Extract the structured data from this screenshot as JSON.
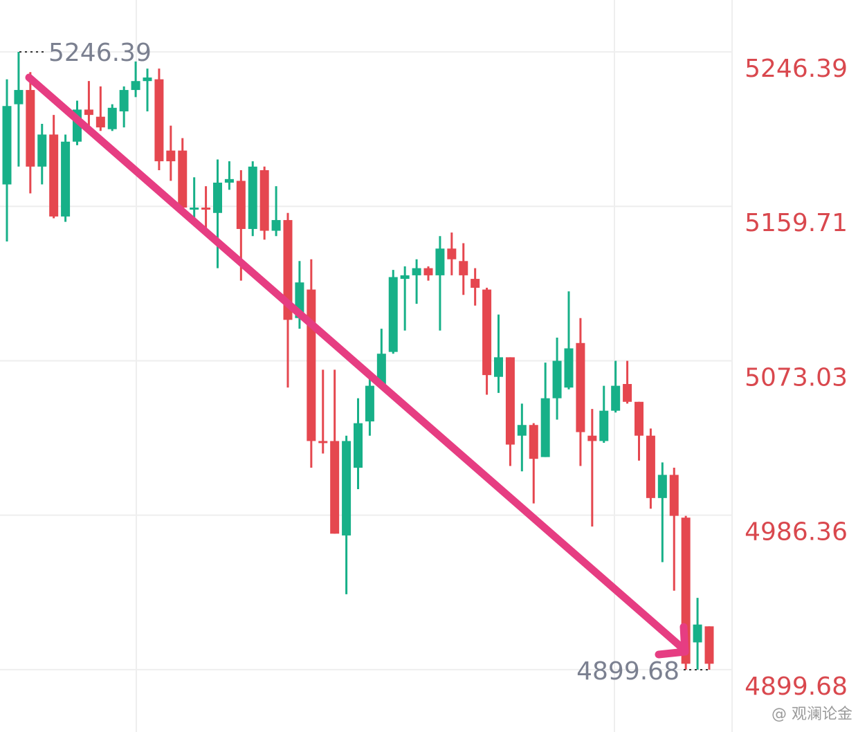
{
  "chart_data": {
    "type": "candlestick",
    "open": [
      5172,
      5217,
      5225,
      5182,
      5200,
      5154,
      5196,
      5214,
      5210,
      5203,
      5213,
      5225,
      5230,
      5231,
      5191,
      5191,
      5158,
      5159,
      5156,
      5173,
      5174,
      5147,
      5180,
      5146,
      5152,
      5097,
      5113,
      5028,
      5028,
      4975,
      5013,
      5039,
      5060,
      5078,
      5119,
      5121,
      5125,
      5121,
      5136,
      5129,
      5119,
      5113,
      5064,
      5075,
      5031,
      5037,
      5019,
      5052,
      5058,
      5083,
      5031,
      5028,
      5045,
      5060,
      5050,
      5031,
      4996,
      5009,
      4985,
      4915,
      4924
    ],
    "high": [
      5231,
      5246.39,
      5235,
      5206,
      5211,
      5200,
      5219,
      5230,
      5227,
      5217,
      5227,
      5241,
      5237,
      5237,
      5205,
      5198,
      5176,
      5171,
      5186,
      5185,
      5180,
      5185,
      5182,
      5171,
      5156,
      5129,
      5130,
      5068,
      5068,
      5031,
      5052,
      5063,
      5091,
      5124,
      5126,
      5130,
      5126,
      5143,
      5145,
      5139,
      5125,
      5114,
      5099,
      5075,
      5049,
      5038,
      5072,
      5086,
      5112,
      5097,
      5046,
      5059,
      5073,
      5073,
      5050,
      5035,
      5016,
      5013,
      4986,
      4940,
      4924
    ],
    "low": [
      5140,
      5182,
      5167,
      5172,
      5153,
      5151,
      5194,
      5204,
      5202,
      5202,
      5204,
      5221,
      5213,
      5180,
      5174,
      5157,
      5151,
      5147,
      5125,
      5169,
      5118,
      5143,
      5141,
      5143,
      5058,
      5091,
      5013,
      5021,
      4976,
      4942,
      5001,
      5031,
      5058,
      5077,
      5090,
      5105,
      5118,
      5090,
      5121,
      5110,
      5104,
      5054,
      5055,
      5014,
      5011,
      4993,
      5019,
      5040,
      5057,
      5014,
      4980,
      5027,
      5044,
      5049,
      5017,
      4990,
      4960,
      4944,
      4899.68,
      4899.68,
      4899.68
    ],
    "close": [
      5216,
      5225,
      5182,
      5200,
      5154,
      5196,
      5214,
      5211,
      5204,
      5215,
      5225,
      5230,
      5232,
      5185,
      5185,
      5159,
      5159,
      5158,
      5173,
      5175,
      5147,
      5182,
      5146,
      5152,
      5096,
      5117,
      5028,
      5027,
      4976,
      5028,
      5038,
      5059,
      5077,
      5120,
      5121,
      5125,
      5121,
      5136,
      5130,
      5121,
      5114,
      5065,
      5075,
      5026,
      5037,
      5018,
      5052,
      5073,
      5080,
      5033,
      5028,
      5045,
      5059,
      5050,
      5031,
      4996,
      5009,
      4986,
      4903,
      4925,
      4903
    ],
    "up_color": "#17b088",
    "down_color": "#e5474f",
    "ylim": [
      4864.7,
      5275.5
    ],
    "yticks": [
      5246.39,
      5159.71,
      5073.03,
      4986.36,
      4899.68
    ],
    "grid": true
  },
  "watermark": "@ 观澜论金"
}
